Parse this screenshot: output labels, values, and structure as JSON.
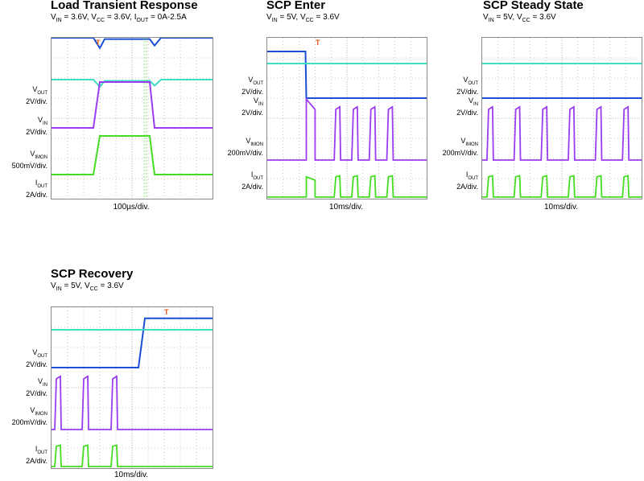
{
  "colors": {
    "vout": "#1a4fd6",
    "vin": "#3ee0c0",
    "imon": "#9b3cf0",
    "iout": "#44dd22",
    "trigger": "#e8541a",
    "grid": "#9a9a9a"
  },
  "chart_data": [
    {
      "type": "line",
      "title": "Load Transient Response",
      "conditions": "VIN = 3.6V, VCC = 3.6V, IOUT = 0A-2.5A",
      "cond_parts": [
        [
          "V",
          "IN",
          " = 3.6V, "
        ],
        [
          "V",
          "CC",
          " = 3.6V, "
        ],
        [
          "I",
          "OUT",
          " = 0A-2.5A"
        ]
      ],
      "xlabel": "100µs/div.",
      "channel_labels": [
        {
          "name": "V",
          "sub": "OUT",
          "scale": "2V/div."
        },
        {
          "name": "V",
          "sub": "IN",
          "scale": "2V/div."
        },
        {
          "name": "V",
          "sub": "IMON",
          "scale": "500mV/div."
        },
        {
          "name": "I",
          "sub": "OUT",
          "scale": "2A/div."
        }
      ],
      "x": [
        0,
        2.6,
        3.0,
        3.3,
        6.1,
        6.4,
        6.8,
        10
      ],
      "series": [
        {
          "name": "VOUT",
          "values": [
            1.0,
            1.0,
            0.6,
            0.95,
            0.95,
            0.7,
            1.0,
            1.0
          ]
        },
        {
          "name": "VIN",
          "values": [
            1.0,
            1.0,
            0.7,
            0.95,
            0.95,
            0.75,
            1.0,
            1.0
          ]
        },
        {
          "name": "IMON",
          "values": [
            0,
            0,
            1.9,
            1.9,
            1.9,
            0,
            0,
            0
          ]
        },
        {
          "name": "IOUT",
          "values": [
            0,
            0,
            1.6,
            1.6,
            1.6,
            0,
            0,
            0
          ]
        }
      ],
      "xlim": [
        0,
        10
      ]
    },
    {
      "type": "line",
      "title": "SCP Enter",
      "conditions": "VIN = 5V, VCC = 3.6V",
      "cond_parts": [
        [
          "V",
          "IN",
          " = 5V, "
        ],
        [
          "V",
          "CC",
          " = 3.6V"
        ]
      ],
      "xlabel": "10ms/div.",
      "channel_labels": [
        {
          "name": "V",
          "sub": "OUT",
          "scale": "2V/div."
        },
        {
          "name": "V",
          "sub": "IN",
          "scale": "2V/div."
        },
        {
          "name": "V",
          "sub": "IMON",
          "scale": "200mV/div."
        },
        {
          "name": "I",
          "sub": "OUT",
          "scale": "2A/div."
        }
      ],
      "pulses": [
        4.2,
        5.3,
        6.4,
        7.5
      ],
      "x": [
        0,
        2.4,
        2.45,
        10
      ],
      "series": [
        {
          "name": "VOUT",
          "values": [
            2.9,
            2.9,
            0,
            0
          ]
        },
        {
          "name": "VIN",
          "values": [
            1.0,
            1.0,
            1.0,
            1.0
          ]
        },
        {
          "name": "IMON",
          "values": [
            0,
            0,
            2.8,
            0
          ]
        },
        {
          "name": "IOUT",
          "values": [
            0,
            0,
            1.0,
            0
          ]
        }
      ],
      "xlim": [
        0,
        10
      ]
    },
    {
      "type": "line",
      "title": "SCP Steady State",
      "conditions": "VIN = 5V, VCC = 3.6V",
      "cond_parts": [
        [
          "V",
          "IN",
          " = 5V, "
        ],
        [
          "V",
          "CC",
          " = 3.6V"
        ]
      ],
      "xlabel": "10ms/div.",
      "channel_labels": [
        {
          "name": "V",
          "sub": "OUT",
          "scale": "2V/div."
        },
        {
          "name": "V",
          "sub": "IN",
          "scale": "2V/div."
        },
        {
          "name": "V",
          "sub": "IMON",
          "scale": "200mV/div."
        },
        {
          "name": "I",
          "sub": "OUT",
          "scale": "2A/div."
        }
      ],
      "pulses": [
        0.3,
        2.0,
        3.7,
        5.4,
        7.1,
        8.8
      ],
      "x": [
        0,
        10
      ],
      "series": [
        {
          "name": "VOUT",
          "values": [
            0,
            0
          ]
        },
        {
          "name": "VIN",
          "values": [
            1.0,
            1.0
          ]
        },
        {
          "name": "IMON",
          "values": [
            0,
            0
          ]
        },
        {
          "name": "IOUT",
          "values": [
            0,
            0
          ]
        }
      ],
      "xlim": [
        0,
        10
      ]
    },
    {
      "type": "line",
      "title": "SCP Recovery",
      "conditions": "VIN = 5V, VCC = 3.6V",
      "cond_parts": [
        [
          "V",
          "IN",
          " = 5V, "
        ],
        [
          "V",
          "CC",
          " = 3.6V"
        ]
      ],
      "xlabel": "10ms/div.",
      "channel_labels": [
        {
          "name": "V",
          "sub": "OUT",
          "scale": "2V/div."
        },
        {
          "name": "V",
          "sub": "IN",
          "scale": "2V/div."
        },
        {
          "name": "V",
          "sub": "IMON",
          "scale": "200mV/div."
        },
        {
          "name": "I",
          "sub": "OUT",
          "scale": "2A/div."
        }
      ],
      "pulses": [
        0.2,
        1.9,
        3.7
      ],
      "x": [
        0,
        5.4,
        5.8,
        10
      ],
      "series": [
        {
          "name": "VOUT",
          "values": [
            0,
            0,
            3.6,
            3.6
          ]
        },
        {
          "name": "VIN",
          "values": [
            1.0,
            1.0,
            1.0,
            1.0
          ]
        },
        {
          "name": "IMON",
          "values": [
            0,
            0,
            0,
            0
          ]
        },
        {
          "name": "IOUT",
          "values": [
            0,
            0,
            0,
            0
          ]
        }
      ],
      "xlim": [
        0,
        10
      ]
    }
  ]
}
